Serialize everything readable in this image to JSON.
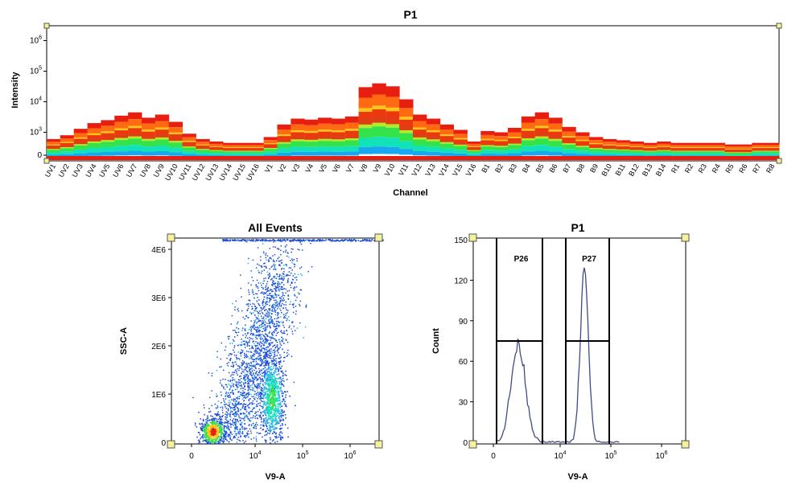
{
  "chart_data": [
    {
      "type": "heatmap",
      "title": "P1",
      "xlabel": "Channel",
      "ylabel": "Intensity",
      "y_scale": "log",
      "y_ticks": [
        {
          "base": "0",
          "exp": ""
        },
        {
          "base": "10",
          "exp": "3"
        },
        {
          "base": "10",
          "exp": "4"
        },
        {
          "base": "10",
          "exp": "5"
        },
        {
          "base": "10",
          "exp": "6"
        }
      ],
      "categories": [
        "UV1",
        "UV2",
        "UV3",
        "UV4",
        "UV5",
        "UV6",
        "UV7",
        "UV8",
        "UV9",
        "UV10",
        "UV11",
        "UV12",
        "UV13",
        "UV14",
        "UV15",
        "UV16",
        "V1",
        "V2",
        "V3",
        "V4",
        "V5",
        "V6",
        "V7",
        "V8",
        "V9",
        "V10",
        "V11",
        "V12",
        "V13",
        "V14",
        "V15",
        "V16",
        "B1",
        "B2",
        "B3",
        "B4",
        "B5",
        "B6",
        "B7",
        "B8",
        "B9",
        "B10",
        "B11",
        "B12",
        "B13",
        "B14",
        "R1",
        "R2",
        "R3",
        "R4",
        "R5",
        "R6",
        "R7",
        "R8"
      ],
      "values": [
        600,
        800,
        1300,
        2000,
        2500,
        3500,
        4500,
        3000,
        3800,
        2200,
        900,
        600,
        500,
        450,
        450,
        450,
        700,
        1800,
        2800,
        2600,
        3000,
        2800,
        3300,
        30000,
        40000,
        32000,
        12000,
        3800,
        2800,
        1800,
        1200,
        500,
        1100,
        1000,
        1400,
        3300,
        4500,
        3000,
        1500,
        1000,
        700,
        600,
        550,
        500,
        450,
        500,
        450,
        450,
        450,
        450,
        400,
        400,
        450,
        450
      ]
    },
    {
      "type": "scatter",
      "title": "All Events",
      "xlabel": "V9-A",
      "ylabel": "SSC-A",
      "x_scale": "log",
      "x_ticks": [
        {
          "base": "0",
          "exp": ""
        },
        {
          "base": "10",
          "exp": "4"
        },
        {
          "base": "10",
          "exp": "5"
        },
        {
          "base": "10",
          "exp": "6"
        }
      ],
      "y_ticks": [
        "0",
        "1E6",
        "2E6",
        "3E6",
        "4E6"
      ],
      "ylim": [
        0,
        4200000
      ],
      "populations": [
        {
          "x_center": 800,
          "y_center": 150000,
          "count": 600
        },
        {
          "x_center": 25000,
          "y_center": 800000,
          "count": 900
        },
        {
          "x_center": 6000,
          "y_center": 1800000,
          "count": 2200
        },
        {
          "x_center": 10000,
          "y_center": 4200000,
          "count": 300
        }
      ]
    },
    {
      "type": "line",
      "title": "P1",
      "xlabel": "V9-A",
      "ylabel": "Count",
      "x_scale": "log",
      "x_ticks": [
        {
          "base": "0",
          "exp": ""
        },
        {
          "base": "10",
          "exp": "4"
        },
        {
          "base": "10",
          "exp": "5"
        },
        {
          "base": "10",
          "exp": "6"
        }
      ],
      "y_ticks": [
        "0",
        "30",
        "60",
        "90",
        "120",
        "150"
      ],
      "ylim": [
        0,
        150
      ],
      "gates": [
        {
          "name": "P26"
        },
        {
          "name": "P27"
        }
      ],
      "peaks": [
        {
          "x": 1500,
          "count": 72
        },
        {
          "x": 30000,
          "count": 128
        }
      ]
    }
  ]
}
